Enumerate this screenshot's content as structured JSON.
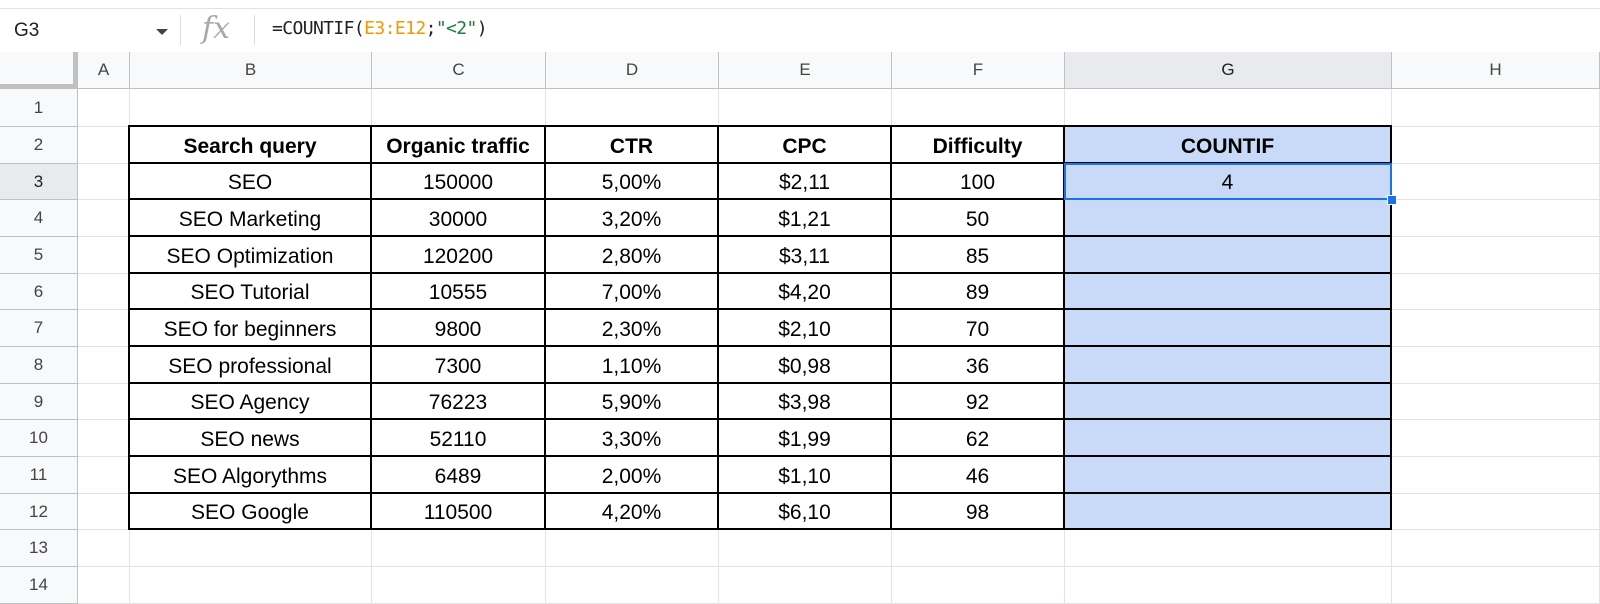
{
  "name_box": {
    "value": "G3"
  },
  "formula_bar": {
    "fx_label": "fx",
    "formula_prefix": "=COUNTIF(",
    "formula_range": "E3:E12",
    "formula_sep": ";",
    "formula_criteria": "\"<2\"",
    "formula_suffix": ")"
  },
  "columns": [
    "A",
    "B",
    "C",
    "D",
    "E",
    "F",
    "G",
    "H"
  ],
  "rows": [
    "1",
    "2",
    "3",
    "4",
    "5",
    "6",
    "7",
    "8",
    "9",
    "10",
    "11",
    "12",
    "13",
    "14"
  ],
  "table": {
    "headers": [
      "Search query",
      "Organic traffic",
      "CTR",
      "CPC",
      "Difficulty",
      "COUNTIF"
    ],
    "rows": [
      [
        "SEO",
        "150000",
        "5,00%",
        "$2,11",
        "100",
        "4"
      ],
      [
        "SEO Marketing",
        "30000",
        "3,20%",
        "$1,21",
        "50",
        ""
      ],
      [
        "SEO Optimization",
        "120200",
        "2,80%",
        "$3,11",
        "85",
        ""
      ],
      [
        "SEO Tutorial",
        "10555",
        "7,00%",
        "$4,20",
        "89",
        ""
      ],
      [
        "SEO for beginners",
        "9800",
        "2,30%",
        "$2,10",
        "70",
        ""
      ],
      [
        "SEO professional",
        "7300",
        "1,10%",
        "$0,98",
        "36",
        ""
      ],
      [
        "SEO Agency",
        "76223",
        "5,90%",
        "$3,98",
        "92",
        ""
      ],
      [
        "SEO news",
        "52110",
        "3,30%",
        "$1,99",
        "62",
        ""
      ],
      [
        "SEO Algorythms",
        "6489",
        "2,00%",
        "$1,10",
        "46",
        ""
      ],
      [
        "SEO Google",
        "110500",
        "4,20%",
        "$6,10",
        "98",
        ""
      ]
    ]
  },
  "colors": {
    "selection_fill": "#c9daf8",
    "selection_border": "#1a73e8"
  },
  "selected": {
    "cell": "G3",
    "column": "G",
    "row": "3"
  }
}
